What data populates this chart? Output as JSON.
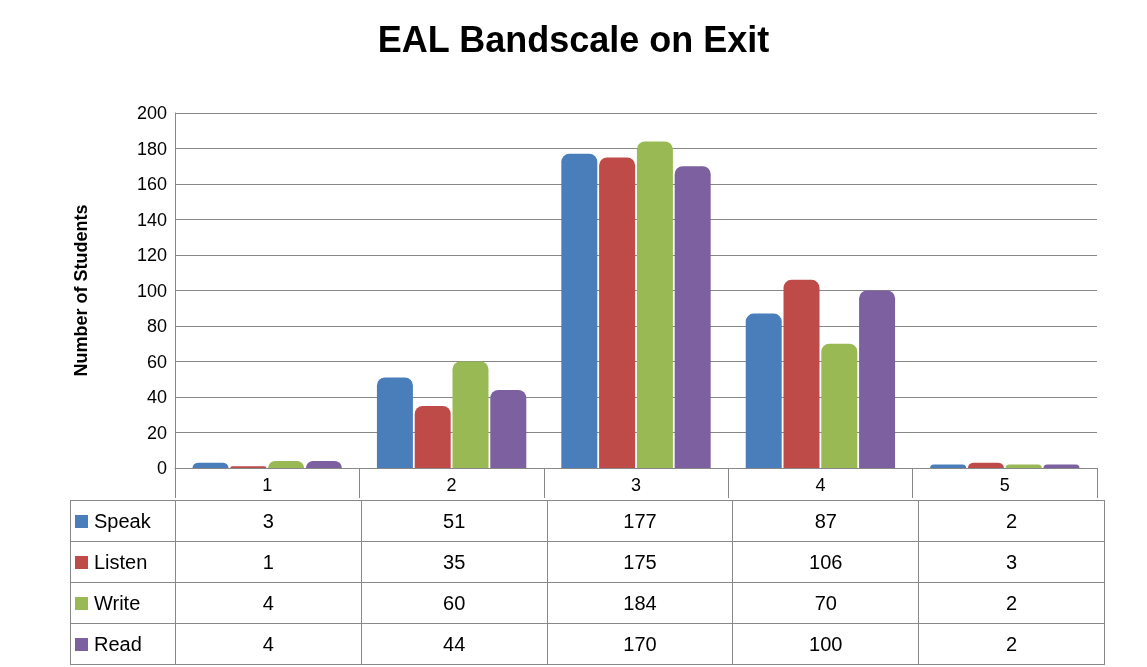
{
  "chart_data": {
    "type": "bar",
    "title": "EAL Bandscale on Exit",
    "ylabel": "Number of Students",
    "categories": [
      "1",
      "2",
      "3",
      "4",
      "5"
    ],
    "series": [
      {
        "name": "Speak",
        "color": "#4a7ebb",
        "values": [
          3,
          51,
          177,
          87,
          2
        ]
      },
      {
        "name": "Listen",
        "color": "#be4b48",
        "values": [
          1,
          35,
          175,
          106,
          3
        ]
      },
      {
        "name": "Write",
        "color": "#98b954",
        "values": [
          4,
          60,
          184,
          70,
          2
        ]
      },
      {
        "name": "Read",
        "color": "#7d60a0",
        "values": [
          4,
          44,
          170,
          100,
          2
        ]
      }
    ],
    "ylim": [
      0,
      200
    ],
    "yticks": [
      0,
      20,
      40,
      60,
      80,
      100,
      120,
      140,
      160,
      180,
      200
    ],
    "grid": "y",
    "data_labels": true,
    "legend": "bottom"
  }
}
